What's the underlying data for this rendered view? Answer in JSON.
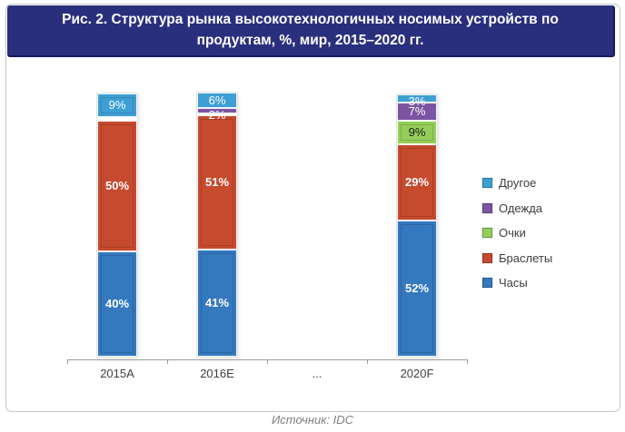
{
  "source": {
    "label": "Источник: IDC"
  },
  "chart_data": {
    "type": "bar",
    "subtype": "stacked-percent",
    "title": "Рис. 2. Структура рынка высокотехнологичных носимых устройств по продуктам, %, мир, 2015–2020 гг.",
    "categories": [
      "2015A",
      "2016E",
      "...",
      "2020F"
    ],
    "series": [
      {
        "name": "Часы",
        "color": "#3478be",
        "label_color": "#ffffff",
        "label_bold": true,
        "values": [
          40,
          41,
          null,
          52
        ]
      },
      {
        "name": "Браслеты",
        "color": "#c64a2e",
        "label_color": "#ffffff",
        "label_bold": true,
        "values": [
          50,
          51,
          null,
          29
        ]
      },
      {
        "name": "Очки",
        "color": "#94ce58",
        "label_color": "#1a1a1a",
        "label_bold": false,
        "values": [
          0,
          0,
          null,
          9
        ]
      },
      {
        "name": "Одежда",
        "color": "#7c54a2",
        "label_color": "#ffffff",
        "label_bold": false,
        "values": [
          0,
          2,
          null,
          7
        ]
      },
      {
        "name": "Другое",
        "color": "#3e9fd4",
        "label_color": "#ffffff",
        "label_bold": false,
        "values": [
          9,
          6,
          null,
          3
        ]
      }
    ],
    "segment_labels": {
      "2015A": {
        "Часы": "40%",
        "Браслеты": "50%",
        "Другое": "9%"
      },
      "2016E": {
        "Часы": "41%",
        "Браслеты": "51%",
        "Одежда": "2%",
        "Другое": "6%"
      },
      "2020F": {
        "Часы": "52%",
        "Браслеты": "29%",
        "Очки": "9%",
        "Одежда": "7%",
        "Другое": "3%"
      }
    },
    "legend": [
      {
        "label": "Другое",
        "color": "#3e9fd4"
      },
      {
        "label": "Одежда",
        "color": "#7c54a2"
      },
      {
        "label": "Очки",
        "color": "#94ce58"
      },
      {
        "label": "Браслеты",
        "color": "#c64a2e"
      },
      {
        "label": "Часы",
        "color": "#3478be"
      }
    ],
    "legend_position": "right",
    "ylim": [
      0,
      100
    ],
    "unit": "%",
    "grid": false,
    "xlabel": "",
    "ylabel": ""
  },
  "colors": {
    "header_background": "#2a2f7d",
    "header_text": "#ffffff",
    "axis": "#9c9c9c",
    "frame_border": "#c6c6c6",
    "source_text": "#7f7f7f"
  }
}
